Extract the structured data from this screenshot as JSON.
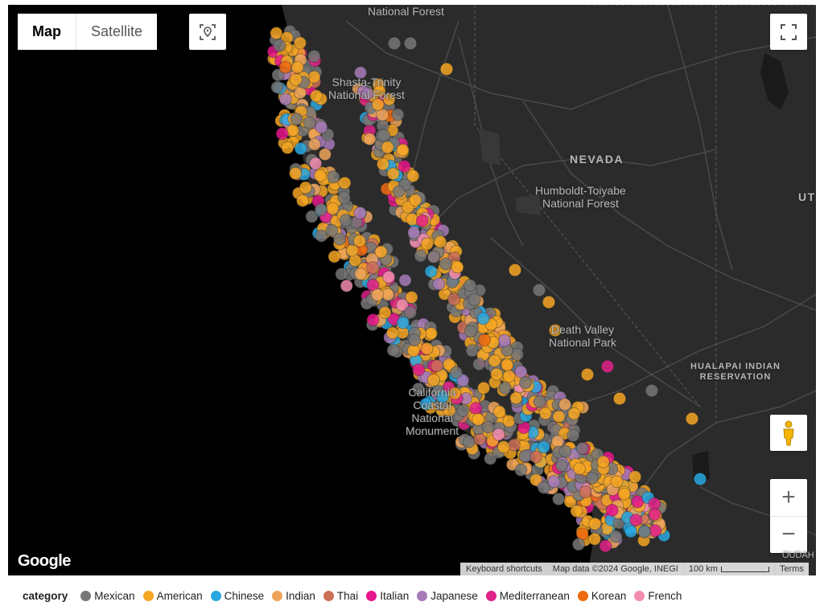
{
  "map": {
    "type_control": {
      "map_label": "Map",
      "satellite_label": "Satellite"
    },
    "labels": {
      "national_forest_top": "National Forest",
      "shasta_trinity": [
        "Shasta-Trinity",
        "National Forest"
      ],
      "nevada": "NEVADA",
      "humboldt_toiyabe": [
        "Humboldt-Toiyabe",
        "National Forest"
      ],
      "death_valley": [
        "Death Valley",
        "National Park"
      ],
      "hualapai": [
        "HUALAPAI INDIAN",
        "RESERVATION"
      ],
      "california_coastal": [
        "California",
        "Coastal",
        "National",
        "Monument"
      ],
      "ut_partial": "UT",
      "cudah_partial": "OUDAH"
    },
    "logo": "Google",
    "attribution": {
      "keyboard": "Keyboard shortcuts",
      "map_data": "Map data ©2024 Google, INEGI",
      "scale": "100 km",
      "terms": "Terms"
    },
    "zoom": {
      "in_label": "+",
      "out_label": "−"
    },
    "icons": {
      "locate": "locate-icon",
      "fullscreen": "fullscreen-icon",
      "pegman": "pegman-icon"
    }
  },
  "legend": {
    "title": "category",
    "items": [
      {
        "label": "Mexican",
        "color": "#777777"
      },
      {
        "label": "American",
        "color": "#F5A623"
      },
      {
        "label": "Chinese",
        "color": "#29A8E0"
      },
      {
        "label": "Indian",
        "color": "#EFA45C"
      },
      {
        "label": "Thai",
        "color": "#CD7058"
      },
      {
        "label": "Italian",
        "color": "#E7158C"
      },
      {
        "label": "Japanese",
        "color": "#A77BB8"
      },
      {
        "label": "Mediterranean",
        "color": "#E0218A"
      },
      {
        "label": "Korean",
        "color": "#F06A0F"
      },
      {
        "label": "French",
        "color": "#F28DB0"
      }
    ]
  }
}
